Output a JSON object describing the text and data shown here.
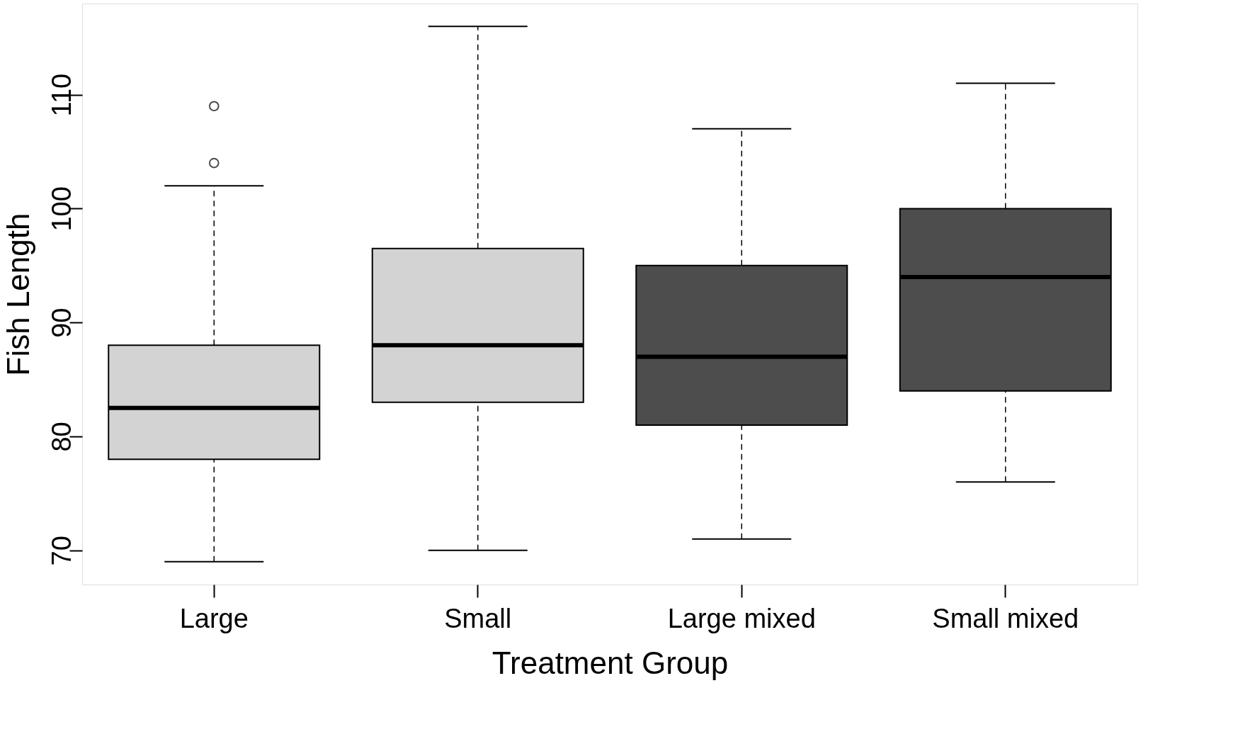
{
  "chart_data": {
    "type": "box",
    "xlabel": "Treatment Group",
    "ylabel": "Fish Length",
    "categories": [
      "Large",
      "Small",
      "Large mixed",
      "Small mixed"
    ],
    "colors": [
      "#d3d3d3",
      "#d3d3d3",
      "#4d4d4d",
      "#4d4d4d"
    ],
    "boxes": [
      {
        "low": 69,
        "q1": 78,
        "median": 82.5,
        "q3": 88,
        "high": 102,
        "outliers": [
          104,
          109
        ]
      },
      {
        "low": 70,
        "q1": 83,
        "median": 88,
        "q3": 96.5,
        "high": 116
      },
      {
        "low": 71,
        "q1": 81,
        "median": 87,
        "q3": 95,
        "high": 107
      },
      {
        "low": 76,
        "q1": 84,
        "median": 94,
        "q3": 100,
        "high": 111
      }
    ],
    "ylim": [
      67,
      118
    ],
    "yticks": [
      70,
      80,
      90,
      100,
      110
    ]
  }
}
